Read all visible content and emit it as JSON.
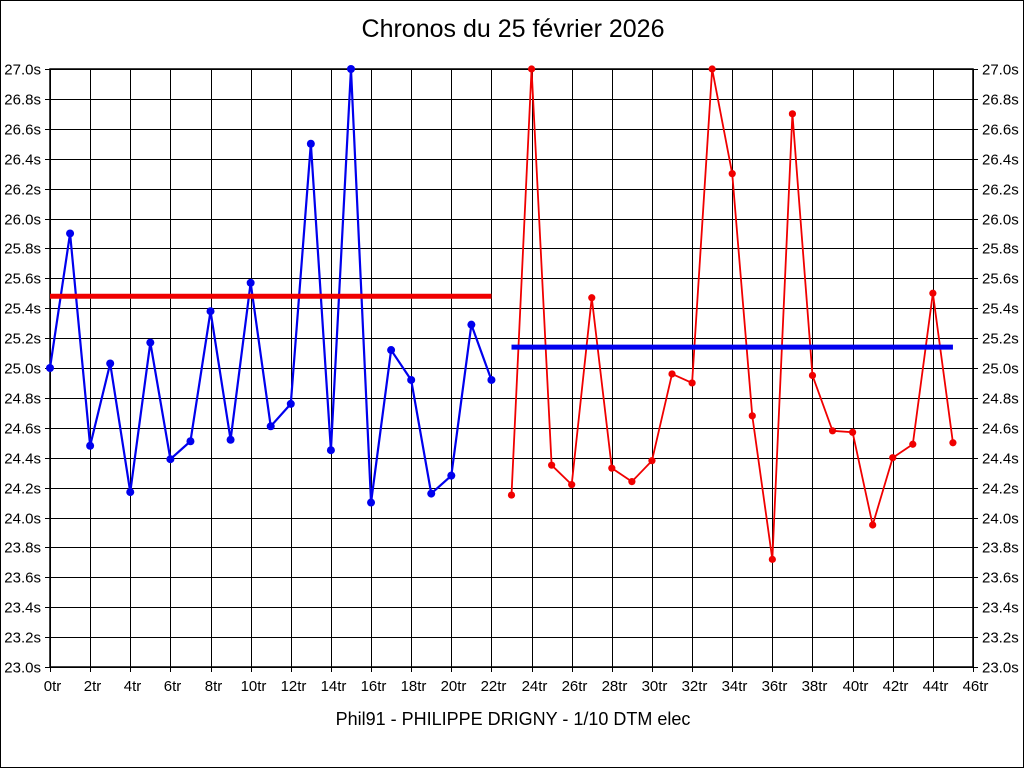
{
  "page": {
    "title": "Chronos du 25 février 2026",
    "caption": "Phil91 - PHILIPPE DRIGNY - 1/10 DTM elec"
  },
  "chart_data": {
    "type": "line",
    "title": "Chronos du 25 février 2026",
    "subtitle": "",
    "xlabel": "",
    "ylabel": "",
    "x_unit": "tr",
    "y_unit": "s",
    "xlim": [
      0,
      46
    ],
    "ylim": [
      23.0,
      27.0
    ],
    "grid": true,
    "legend_position": "none",
    "x_tick_values": [
      0,
      2,
      4,
      6,
      8,
      10,
      12,
      14,
      16,
      18,
      20,
      22,
      24,
      26,
      28,
      30,
      32,
      34,
      36,
      38,
      40,
      42,
      44,
      46
    ],
    "x_tick_labels": [
      "0tr",
      "2tr",
      "4tr",
      "6tr",
      "8tr",
      "10tr",
      "12tr",
      "14tr",
      "16tr",
      "18tr",
      "20tr",
      "22tr",
      "24tr",
      "26tr",
      "28tr",
      "30tr",
      "32tr",
      "34tr",
      "36tr",
      "38tr",
      "40tr",
      "42tr",
      "44tr",
      "46tr"
    ],
    "y_tick_values": [
      27.0,
      26.8,
      26.6,
      26.4,
      26.2,
      26.0,
      25.8,
      25.6,
      25.4,
      25.2,
      25.0,
      24.8,
      24.6,
      24.4,
      24.2,
      24.0,
      23.8,
      23.6,
      23.4,
      23.2,
      23.0
    ],
    "y_tick_labels": [
      "27.0s",
      "26.8s",
      "26.6s",
      "26.4s",
      "26.2s",
      "26.0s",
      "25.8s",
      "25.6s",
      "25.4s",
      "25.2s",
      "25.0s",
      "24.8s",
      "24.6s",
      "24.4s",
      "24.2s",
      "24.0s",
      "23.8s",
      "23.6s",
      "23.4s",
      "23.2s",
      "23.0s"
    ],
    "series": [
      {
        "name": "laps-series-blue",
        "color": "#0000ee",
        "start_lap": 0,
        "values": [
          25.0,
          25.9,
          24.48,
          25.03,
          24.17,
          25.17,
          24.39,
          24.51,
          25.38,
          24.52,
          25.57,
          24.61,
          24.76,
          26.5,
          24.45,
          27.0,
          24.1,
          25.12,
          24.92,
          24.16,
          24.28,
          25.29,
          24.92
        ]
      },
      {
        "name": "laps-series-red",
        "color": "#f00000",
        "start_lap": 23,
        "values": [
          24.15,
          27.0,
          24.35,
          24.22,
          25.47,
          24.33,
          24.24,
          24.38,
          24.96,
          24.9,
          27.0,
          26.3,
          24.68,
          23.72,
          26.7,
          24.95,
          24.58,
          24.57,
          23.95,
          24.4,
          24.49,
          25.5,
          24.5
        ]
      }
    ],
    "reference_lines": [
      {
        "name": "red-average-line",
        "color": "#f00000",
        "value": 25.48,
        "from_lap": 0,
        "to_lap": 22
      },
      {
        "name": "blue-average-line",
        "color": "#0000ee",
        "value": 25.14,
        "from_lap": 23,
        "to_lap": 45
      }
    ]
  }
}
